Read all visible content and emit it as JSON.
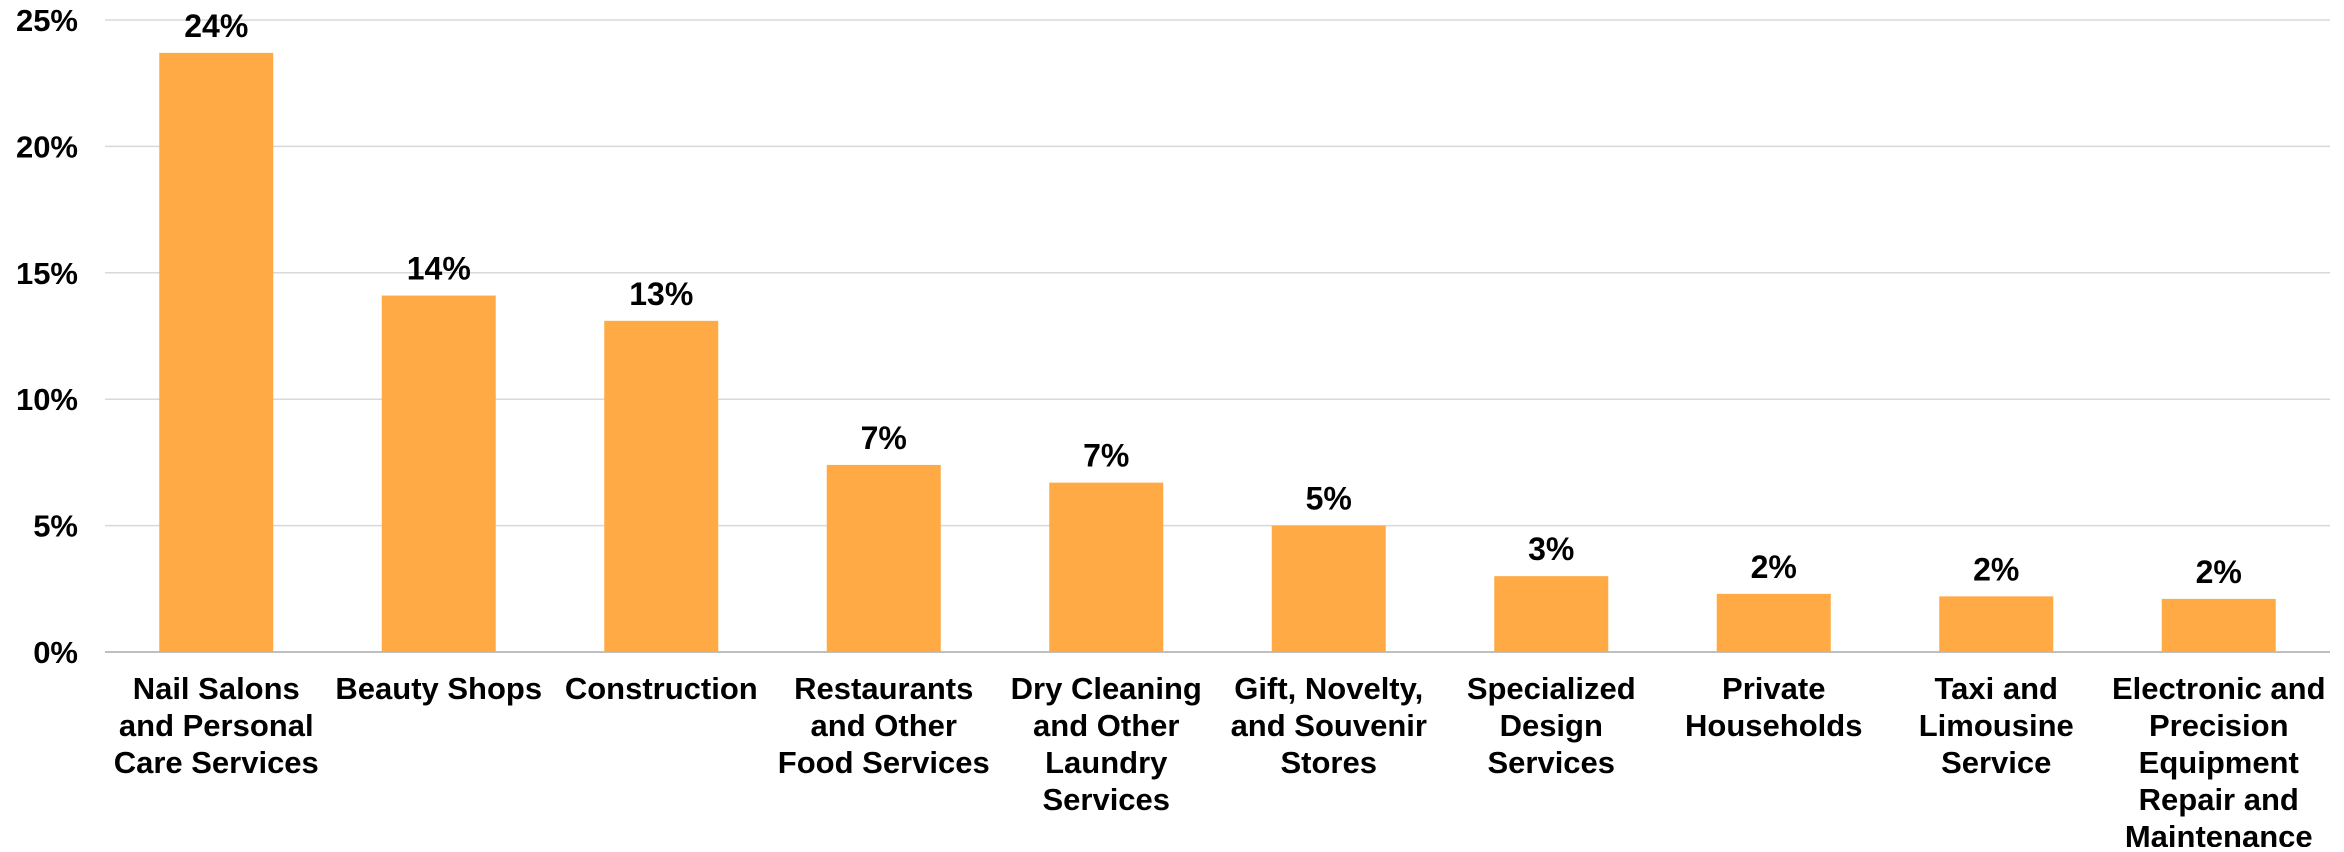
{
  "chart_data": {
    "type": "bar",
    "title": "",
    "xlabel": "",
    "ylabel": "",
    "ylim": [
      0,
      0.25
    ],
    "y_ticks": [
      0,
      0.05,
      0.1,
      0.15,
      0.2,
      0.25
    ],
    "y_tick_labels": [
      "0%",
      "5%",
      "10%",
      "15%",
      "20%",
      "25%"
    ],
    "grid": true,
    "legend": "none",
    "bar_color": "#FFAA44",
    "categories": [
      [
        "Nail Salons",
        "and Personal",
        "Care Services"
      ],
      [
        "Beauty Shops"
      ],
      [
        "Construction"
      ],
      [
        "Restaurants",
        "and Other",
        "Food Services"
      ],
      [
        "Dry Cleaning",
        "and Other",
        "Laundry",
        "Services"
      ],
      [
        "Gift, Novelty,",
        "and Souvenir",
        "Stores"
      ],
      [
        "Specialized",
        "Design",
        "Services"
      ],
      [
        "Private",
        "Households"
      ],
      [
        "Taxi and",
        "Limousine",
        "Service"
      ],
      [
        "Electronic and",
        "Precision",
        "Equipment",
        "Repair and",
        "Maintenance"
      ]
    ],
    "values": [
      0.237,
      0.141,
      0.131,
      0.074,
      0.067,
      0.05,
      0.03,
      0.023,
      0.022,
      0.021
    ],
    "data_labels": [
      "24%",
      "14%",
      "13%",
      "7%",
      "7%",
      "5%",
      "3%",
      "2%",
      "2%",
      "2%"
    ]
  }
}
